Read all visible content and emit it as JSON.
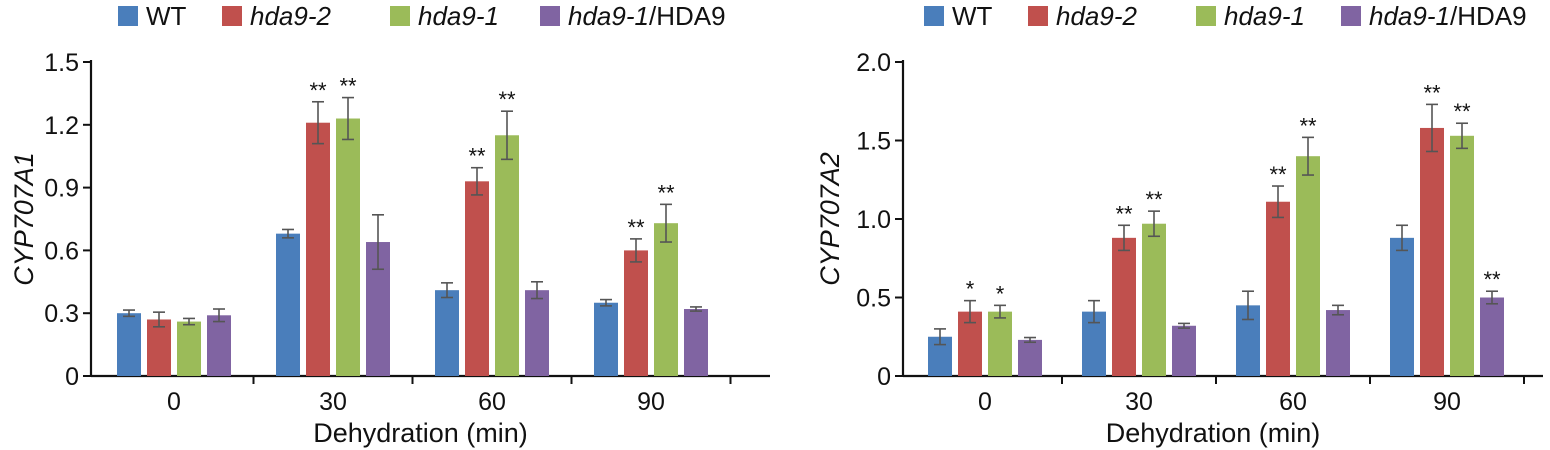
{
  "chart_data": [
    {
      "type": "bar",
      "ylabel": "CYP707A1",
      "xlabel": "Dehydration (min)",
      "categories": [
        "0",
        "30",
        "60",
        "90"
      ],
      "ylim": [
        0,
        1.5
      ],
      "yticks": [
        "0",
        "0.3",
        "0.6",
        "0.9",
        "1.2",
        "1.5"
      ],
      "ytick_values": [
        0,
        0.3,
        0.6,
        0.9,
        1.2,
        1.5
      ],
      "legend": [
        {
          "parts": [
            {
              "text": "WT",
              "italic": false
            }
          ]
        },
        {
          "parts": [
            {
              "text": "hda9-2",
              "italic": true
            }
          ]
        },
        {
          "parts": [
            {
              "text": "hda9-1",
              "italic": true
            }
          ]
        },
        {
          "parts": [
            {
              "text": "hda9-1",
              "italic": true
            },
            {
              "text": "/HDA9",
              "italic": false
            }
          ]
        }
      ],
      "series": [
        {
          "name": "WT",
          "color": "#4a7ebb",
          "values": [
            0.3,
            0.68,
            0.41,
            0.35
          ],
          "errors": [
            0.015,
            0.02,
            0.035,
            0.015
          ],
          "sig": [
            "",
            "",
            "",
            ""
          ]
        },
        {
          "name": "hda9-2",
          "color": "#c0504d",
          "values": [
            0.27,
            1.21,
            0.93,
            0.6
          ],
          "errors": [
            0.035,
            0.1,
            0.065,
            0.055
          ],
          "sig": [
            "",
            "**",
            "**",
            "**"
          ]
        },
        {
          "name": "hda9-1",
          "color": "#9bbb59",
          "values": [
            0.26,
            1.23,
            1.15,
            0.73
          ],
          "errors": [
            0.015,
            0.1,
            0.115,
            0.09
          ],
          "sig": [
            "",
            "**",
            "**",
            "**"
          ]
        },
        {
          "name": "hda9-1/HDA9",
          "color": "#8064a2",
          "values": [
            0.29,
            0.64,
            0.41,
            0.32
          ],
          "errors": [
            0.03,
            0.13,
            0.04,
            0.01
          ],
          "sig": [
            "",
            "",
            "",
            ""
          ]
        }
      ]
    },
    {
      "type": "bar",
      "ylabel": "CYP707A2",
      "xlabel": "Dehydration (min)",
      "categories": [
        "0",
        "30",
        "60",
        "90"
      ],
      "ylim": [
        0,
        2.0
      ],
      "yticks": [
        "0",
        "0.5",
        "1.0",
        "1.5",
        "2.0"
      ],
      "ytick_values": [
        0,
        0.5,
        1.0,
        1.5,
        2.0
      ],
      "legend": [
        {
          "parts": [
            {
              "text": "WT",
              "italic": false
            }
          ]
        },
        {
          "parts": [
            {
              "text": "hda9-2",
              "italic": true
            }
          ]
        },
        {
          "parts": [
            {
              "text": "hda9-1",
              "italic": true
            }
          ]
        },
        {
          "parts": [
            {
              "text": "hda9-1",
              "italic": true
            },
            {
              "text": "/HDA9",
              "italic": false
            }
          ]
        }
      ],
      "series": [
        {
          "name": "WT",
          "color": "#4a7ebb",
          "values": [
            0.25,
            0.41,
            0.45,
            0.88
          ],
          "errors": [
            0.05,
            0.07,
            0.09,
            0.08
          ],
          "sig": [
            "",
            "",
            "",
            ""
          ]
        },
        {
          "name": "hda9-2",
          "color": "#c0504d",
          "values": [
            0.41,
            0.88,
            1.11,
            1.58
          ],
          "errors": [
            0.07,
            0.08,
            0.1,
            0.15
          ],
          "sig": [
            "*",
            "**",
            "**",
            "**"
          ]
        },
        {
          "name": "hda9-1",
          "color": "#9bbb59",
          "values": [
            0.41,
            0.97,
            1.4,
            1.53
          ],
          "errors": [
            0.04,
            0.08,
            0.12,
            0.08
          ],
          "sig": [
            "*",
            "**",
            "**",
            "**"
          ]
        },
        {
          "name": "hda9-1/HDA9",
          "color": "#8064a2",
          "values": [
            0.23,
            0.32,
            0.42,
            0.5
          ],
          "errors": [
            0.015,
            0.015,
            0.03,
            0.04
          ],
          "sig": [
            "",
            "",
            "",
            "**"
          ]
        }
      ]
    }
  ]
}
